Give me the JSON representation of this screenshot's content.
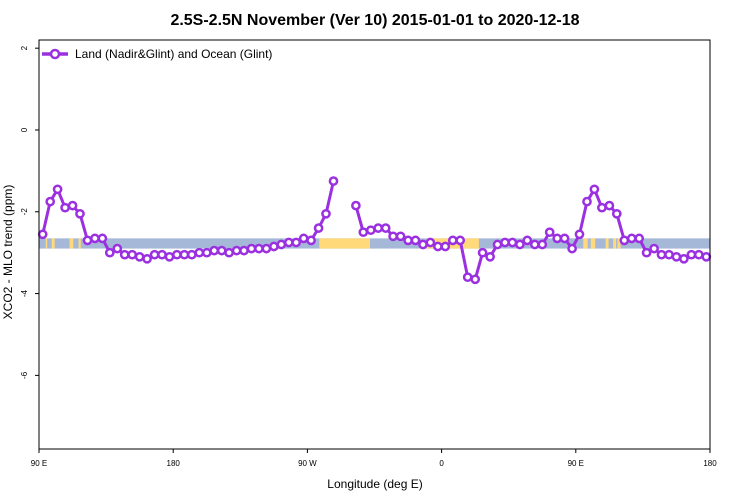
{
  "chart_data": {
    "type": "line",
    "title": "2.5S-2.5N November (Ver 10)   2015-01-01 to 2020-12-18",
    "xlabel": "Longitude (deg E)",
    "ylabel": "XCO2 - MLO trend (ppm)",
    "xlim": [
      90,
      540
    ],
    "ylim": [
      -7.8,
      2.2
    ],
    "x_ticks": [
      {
        "value": 90,
        "label": "90 E"
      },
      {
        "value": 180,
        "label": "180"
      },
      {
        "value": 270,
        "label": "90 W"
      },
      {
        "value": 360,
        "label": "0"
      },
      {
        "value": 450,
        "label": "90 E"
      },
      {
        "value": 540,
        "label": "180"
      }
    ],
    "y_ticks": [
      {
        "value": 2,
        "label": "2"
      },
      {
        "value": 0,
        "label": "0"
      },
      {
        "value": -2,
        "label": "-2"
      },
      {
        "value": -4,
        "label": "-4"
      },
      {
        "value": -6,
        "label": "-6"
      }
    ],
    "grid": false,
    "legend_position": "top-left",
    "series_color": "#9b30e0",
    "land_color": "#ffd97a",
    "ocean_color": "#a5b8d8",
    "surface_band": {
      "y_top": -2.65,
      "y_bottom": -2.9,
      "land_ranges": [
        [
          94.5,
          95.5
        ],
        [
          98.5,
          100.5
        ],
        [
          110.5,
          113
        ],
        [
          116.5,
          118
        ],
        [
          278,
          312
        ],
        [
          350,
          385
        ],
        [
          455,
          458
        ],
        [
          460,
          463
        ],
        [
          470,
          472
        ],
        [
          475,
          477
        ],
        [
          478,
          480
        ]
      ]
    },
    "series": [
      {
        "name": "Land (Nadir&Glint) and Ocean (Glint)",
        "segments": [
          {
            "x": [
              92.5,
              97.5,
              102.5,
              107.5,
              112.5,
              117.5,
              122.5,
              127.5,
              132.5,
              137.5,
              142.5,
              147.5,
              152.5,
              157.5,
              162.5,
              167.5,
              172.5,
              177.5,
              182.5,
              187.5,
              192.5,
              197.5,
              202.5,
              207.5,
              212.5,
              217.5,
              222.5,
              227.5,
              232.5,
              237.5,
              242.5,
              247.5,
              252.5,
              257.5,
              262.5,
              267.5,
              272.5,
              277.5,
              282.5,
              287.5,
              292.5,
              297.5
            ],
            "y": [
              -2.55,
              -1.75,
              -1.45,
              -1.9,
              -1.85,
              -2.05,
              -2.7,
              -2.65,
              -2.65,
              -3.0,
              -2.9,
              -3.05,
              -3.05,
              -3.1,
              -3.15,
              -3.05,
              -3.05,
              -3.1,
              -3.05,
              -3.05,
              -3.05,
              -3.0,
              -3.0,
              -2.95,
              -2.95,
              -3.0,
              -2.95,
              -2.95,
              -2.9,
              -2.9,
              -2.9,
              -2.85,
              -2.8,
              -2.75,
              -2.75,
              -2.65,
              -2.7,
              -2.4,
              -2.05,
              -1.25,
              null,
              null
            ]
          },
          {
            "x": [
              302.5,
              307.5,
              312.5,
              317.5,
              322.5,
              327.5,
              332.5,
              337.5,
              342.5,
              347.5,
              352.5,
              357.5,
              362.5,
              367.5,
              372.5,
              377.5,
              382.5,
              387.5,
              392.5,
              397.5,
              402.5,
              407.5,
              412.5,
              417.5,
              422.5,
              427.5,
              432.5,
              437.5,
              442.5,
              447.5,
              452.5,
              457.5,
              462.5,
              467.5,
              472.5,
              477.5,
              482.5,
              487.5,
              492.5,
              497.5,
              502.5,
              507.5,
              512.5,
              517.5,
              522.5,
              527.5,
              532.5,
              537.5
            ],
            "y": [
              -1.85,
              -2.5,
              -2.45,
              -2.4,
              -2.4,
              -2.6,
              -2.6,
              -2.7,
              -2.7,
              -2.8,
              -2.75,
              -2.85,
              -2.85,
              -2.7,
              -2.7,
              -3.6,
              -3.65,
              -3.0,
              -3.1,
              -2.8,
              -2.75,
              -2.75,
              -2.8,
              -2.7,
              -2.8,
              -2.8,
              -2.5,
              -2.65,
              -2.65,
              -2.9,
              -2.55,
              -1.75,
              -1.45,
              -1.9,
              -1.85,
              -2.05,
              -2.7,
              -2.65,
              -2.65,
              -3.0,
              -2.9,
              -3.05,
              -3.05,
              -3.1,
              -3.15,
              -3.05,
              -3.05,
              -3.1
            ]
          }
        ]
      }
    ]
  }
}
